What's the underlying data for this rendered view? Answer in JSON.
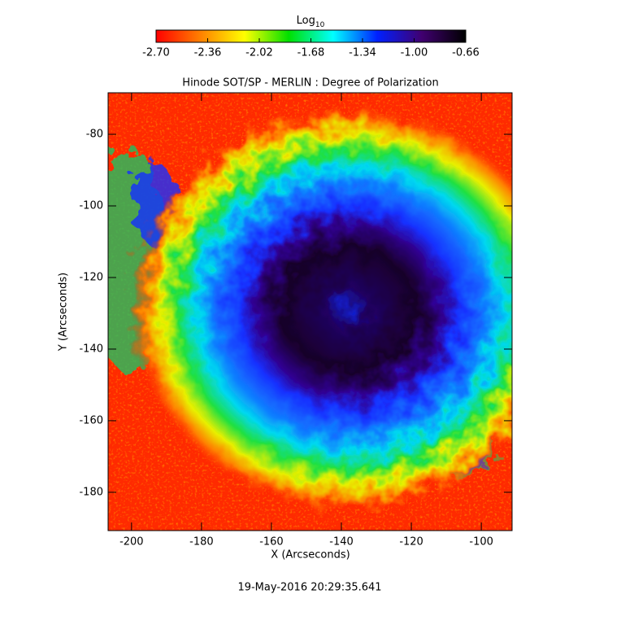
{
  "chart_data": {
    "type": "heatmap",
    "title": "Hinode SOT/SP - MERLIN : Degree of Polarization",
    "xlabel": "X (Arcseconds)",
    "ylabel": "Y (Arcseconds)",
    "xlim": [
      -206.7,
      -91.2
    ],
    "xticks": [
      -200,
      -180,
      -160,
      -140,
      -120,
      -100
    ],
    "ylim": [
      -190.7,
      -68.4
    ],
    "yticks": [
      -180,
      -160,
      -140,
      -120,
      -100,
      -80
    ],
    "colorbar": {
      "label": "Log",
      "label_subscript": "10",
      "lim": [
        -2.7,
        -0.66
      ],
      "ticks": [
        {
          "value": -2.7,
          "label": "-2.70"
        },
        {
          "value": -2.36,
          "label": "-2.36"
        },
        {
          "value": -2.02,
          "label": "-2.02"
        },
        {
          "value": -1.68,
          "label": "-1.68"
        },
        {
          "value": -1.34,
          "label": "-1.34"
        },
        {
          "value": -1.0,
          "label": "-1.00"
        },
        {
          "value": -0.66,
          "label": "-0.66"
        }
      ],
      "colors": [
        "#ff0000",
        "#ff8000",
        "#ffff00",
        "#00e000",
        "#00ffff",
        "#0020ff",
        "#400070",
        "#000000"
      ]
    },
    "timestamp": "19-May-2016 20:29:35.641"
  }
}
